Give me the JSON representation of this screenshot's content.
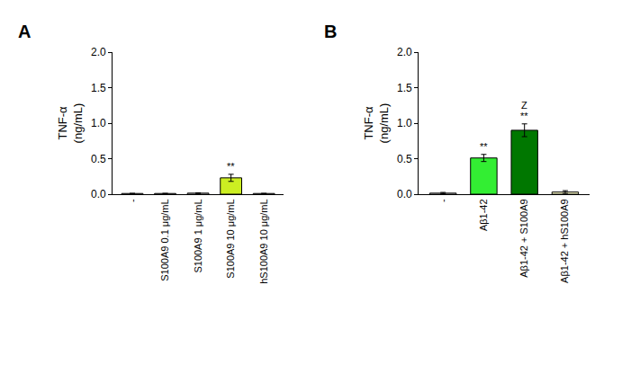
{
  "chart_data": [
    {
      "type": "bar",
      "title": "A",
      "y_label": "TNF-α (ng/mL)",
      "categories": [
        "-",
        "S100A9 0.1 μg/mL",
        "S100A9 1 μg/mL",
        "S100A9 10 μg/mL",
        "hS100A9 10 μg/mL"
      ],
      "values": [
        0.01,
        0.01,
        0.015,
        0.23,
        0.01
      ],
      "errors": [
        0.0,
        0.0,
        0.005,
        0.05,
        0.0
      ],
      "colors": [
        "#ffffff",
        "#ffffff",
        "#ffffff",
        "#ccee22",
        "#ffffff"
      ],
      "ylim": [
        0,
        2
      ],
      "yticks": [
        {
          "value": 0,
          "label": "0.0"
        },
        0.5,
        {
          "value": 1,
          "label": "1.0"
        },
        1.5,
        {
          "value": 2,
          "label": "2.0"
        }
      ],
      "grid": false,
      "annotations": [
        {
          "category": "S100A9 10 μg/mL",
          "text": "**"
        }
      ]
    },
    {
      "type": "bar",
      "title": "B",
      "y_label": "TNF-α (ng/mL)",
      "categories": [
        "-",
        "Aβ1-42",
        "Aβ1-42 + S100A9",
        "Aβ1-42 + hS100A9"
      ],
      "values": [
        0.015,
        0.51,
        0.9,
        0.03
      ],
      "errors": [
        0.01,
        0.05,
        0.09,
        0.02
      ],
      "colors": [
        "#ffffff",
        "#33ee33",
        "#007700",
        "#ffffcc"
      ],
      "ylim": [
        0,
        2
      ],
      "yticks": [
        {
          "value": 0,
          "label": "0.0"
        },
        0.5,
        {
          "value": 1,
          "label": "1.0"
        },
        1.5,
        {
          "value": 2,
          "label": "2.0"
        }
      ],
      "grid": false,
      "annotations": [
        {
          "category": "Aβ1-42",
          "text": "**"
        },
        {
          "category": "Aβ1-42 + S100A9",
          "text": "**"
        },
        {
          "category": "Aβ1-42 + S100A9",
          "text": "Z"
        }
      ]
    }
  ]
}
